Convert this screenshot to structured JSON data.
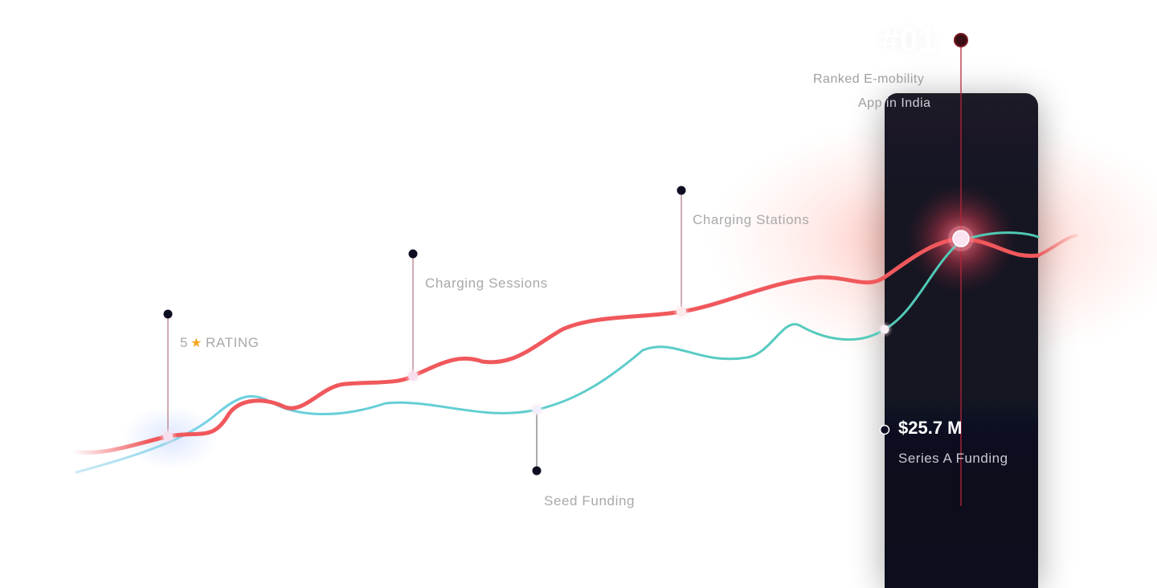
{
  "milestones": {
    "rating": {
      "value": "5",
      "icon": "star-icon",
      "label": "RATING"
    },
    "charging_sessions": "Charging Sessions",
    "charging_stations": "Charging Stations",
    "seed_funding": "Seed Funding",
    "rank": {
      "number": "#01",
      "line1": "Ranked E-mobility",
      "line2_part1": "App",
      "line2_part2": "in India"
    },
    "series_a": {
      "amount": "$25.7 M",
      "label": "Series A Funding"
    }
  },
  "colors": {
    "red_line": "#f0585c",
    "teal_line": "#5ccfc4",
    "dark_panel": "#14131f",
    "star": "#f5a623"
  }
}
